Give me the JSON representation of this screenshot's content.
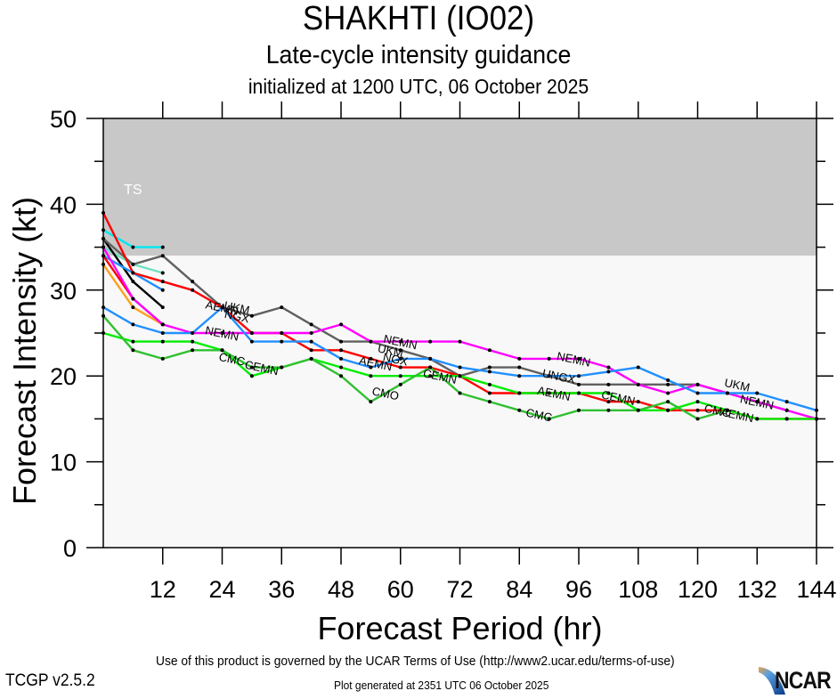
{
  "header": {
    "title": "SHAKHTI (IO02)",
    "subtitle": "Late-cycle intensity guidance",
    "init_line": "initialized at 1200 UTC, 06 October 2025"
  },
  "footer": {
    "terms": "Use of this product is governed by the UCAR Terms of Use (http://www2.ucar.edu/terms-of-use)",
    "version": "TCGP v2.5.2",
    "generated": "Plot generated at 2351 UTC   06 October 2025",
    "logo_text": "NCAR"
  },
  "chart_data": {
    "type": "line",
    "title": "SHAKHTI (IO02)",
    "subtitle": "Late-cycle intensity guidance",
    "xlabel": "Forecast Period (hr)",
    "ylabel": "Forecast Intensity (kt)",
    "xlim": [
      0,
      144
    ],
    "ylim": [
      0,
      50
    ],
    "xticks": [
      12,
      24,
      36,
      48,
      60,
      72,
      84,
      96,
      108,
      120,
      132,
      144
    ],
    "yticks": [
      0,
      10,
      20,
      30,
      40,
      50
    ],
    "grid": false,
    "legend": "none (inline labels)",
    "bands": [
      {
        "label": "TS",
        "from": 34,
        "to": 50,
        "color": "#c8c8c8"
      },
      {
        "label": "",
        "from": 0,
        "to": 34,
        "color": "#f8f8f8"
      }
    ],
    "series": [
      {
        "name": "short-cyan",
        "label": "",
        "color": "#00e8f0",
        "x": [
          0,
          6,
          12
        ],
        "values": [
          37,
          35,
          35
        ]
      },
      {
        "name": "short-aquamarine",
        "label": "",
        "color": "#70e0c0",
        "x": [
          0,
          6,
          12
        ],
        "values": [
          35,
          33,
          32
        ]
      },
      {
        "name": "short-black",
        "label": "",
        "color": "#000000",
        "x": [
          0,
          6,
          12
        ],
        "values": [
          36,
          31,
          28
        ]
      },
      {
        "name": "short-blue",
        "label": "",
        "color": "#2090ff",
        "x": [
          0,
          6,
          12
        ],
        "values": [
          34,
          32,
          30
        ]
      },
      {
        "name": "short-orange",
        "label": "",
        "color": "#ffa020",
        "x": [
          0,
          6,
          12
        ],
        "values": [
          33,
          28,
          26
        ]
      },
      {
        "name": "short-red",
        "label": "",
        "color": "#ff0000",
        "x": [
          0,
          6,
          12
        ],
        "values": [
          34,
          29,
          26
        ]
      },
      {
        "name": "UKM",
        "label": "UKM",
        "color": "#606060",
        "x": [
          0,
          6,
          12,
          18,
          24,
          30,
          36,
          42,
          48,
          54,
          60,
          66,
          72,
          78,
          84,
          90,
          96,
          102,
          108,
          114,
          120,
          126,
          132,
          138
        ],
        "values": [
          36,
          33,
          34,
          31,
          28,
          27,
          28,
          26,
          24,
          24,
          23,
          22,
          20,
          21,
          21,
          20,
          19,
          19,
          19,
          19,
          19,
          18,
          17,
          16
        ]
      },
      {
        "name": "AEMN",
        "label": "AEMN",
        "color": "#ff0000",
        "x": [
          0,
          6,
          12,
          18,
          24,
          30,
          36,
          42,
          48,
          54,
          60,
          66,
          72,
          78,
          84,
          90,
          96,
          102,
          108,
          114,
          120,
          126,
          132,
          138,
          144
        ],
        "values": [
          39,
          32,
          31,
          30,
          28,
          25,
          25,
          23,
          23,
          22,
          21,
          21,
          20,
          18,
          18,
          18,
          18,
          17,
          17,
          16,
          16,
          16,
          15,
          15,
          15
        ]
      },
      {
        "name": "NEMN",
        "label": "NEMN",
        "color": "#ff00ff",
        "x": [
          0,
          6,
          12,
          18,
          24,
          30,
          36,
          42,
          48,
          54,
          60,
          66,
          72,
          78,
          84,
          90,
          96,
          102,
          108,
          114,
          120,
          126,
          132,
          138,
          144
        ],
        "values": [
          35,
          29,
          26,
          25,
          25,
          25,
          25,
          25,
          26,
          24,
          24,
          24,
          24,
          23,
          22,
          22,
          22,
          21,
          19,
          18,
          19,
          18,
          17,
          16,
          15
        ]
      },
      {
        "name": "NGX",
        "label": "NGX",
        "color": "#2090ff",
        "x": [
          0,
          6,
          12,
          18,
          24,
          30,
          36,
          42,
          48,
          54,
          60,
          66,
          72,
          78,
          84,
          90,
          96,
          102,
          108,
          114,
          120,
          126,
          132,
          138,
          144
        ],
        "values": [
          28,
          26,
          25,
          25,
          28,
          24,
          24,
          24,
          22,
          21,
          22,
          22,
          21,
          20.5,
          20,
          20,
          20,
          20.5,
          21,
          19.5,
          18,
          18,
          18,
          17,
          16
        ]
      },
      {
        "name": "CEMN",
        "label": "CEMN",
        "color": "#00ee00",
        "x": [
          0,
          6,
          12,
          18,
          24,
          30,
          36,
          42,
          48,
          54,
          60,
          66,
          72,
          78,
          84,
          90,
          96,
          102,
          108,
          114,
          120,
          126,
          132,
          138,
          144
        ],
        "values": [
          25,
          24,
          24,
          24,
          23,
          20,
          21,
          22,
          21,
          20,
          20,
          20,
          20,
          19,
          18,
          18,
          18,
          18,
          16,
          16,
          17,
          16,
          15,
          15,
          15
        ]
      },
      {
        "name": "CMC",
        "label": "CMC",
        "color": "#30c030",
        "x": [
          0,
          6,
          12,
          18,
          24,
          30,
          36,
          42,
          48,
          54,
          60,
          66,
          72,
          78,
          84,
          90,
          96,
          102,
          108,
          114,
          120,
          126
        ],
        "values": [
          27,
          23,
          22,
          23,
          23,
          21,
          21,
          22,
          20,
          17,
          19,
          21,
          18,
          17,
          16,
          15,
          16,
          16,
          16,
          17,
          15,
          16
        ]
      }
    ],
    "annotations": [
      {
        "text": "NEMN",
        "x": 24,
        "y": 25,
        "series": "NEMN"
      },
      {
        "text": "AEMN",
        "x": 24,
        "y": 28,
        "series": "AEMN"
      },
      {
        "text": "UKM",
        "x": 27,
        "y": 28,
        "series": "UKM"
      },
      {
        "text": "NGX",
        "x": 27,
        "y": 27,
        "series": "NGX"
      },
      {
        "text": "CMC",
        "x": 26,
        "y": 22,
        "series": "CMC"
      },
      {
        "text": "CEMN",
        "x": 32,
        "y": 21,
        "series": "CEMN"
      },
      {
        "text": "NEMN",
        "x": 60,
        "y": 24,
        "series": "NEMN"
      },
      {
        "text": "UKM",
        "x": 58,
        "y": 23,
        "series": "UKM"
      },
      {
        "text": "AEMN",
        "x": 55,
        "y": 21.5,
        "series": "AEMN"
      },
      {
        "text": "NGX",
        "x": 59,
        "y": 22,
        "series": "NGX"
      },
      {
        "text": "CMO",
        "x": 57,
        "y": 18,
        "series": "CMC"
      },
      {
        "text": "CEMN",
        "x": 68,
        "y": 20,
        "series": "CEMN"
      },
      {
        "text": "CMC",
        "x": 88,
        "y": 15.5,
        "series": "CMC"
      },
      {
        "text": "NEMN",
        "x": 95,
        "y": 22,
        "series": "NEMN"
      },
      {
        "text": "UNGX",
        "x": 92,
        "y": 20,
        "series": "NGX"
      },
      {
        "text": "AEMN",
        "x": 91,
        "y": 18,
        "series": "AEMN"
      },
      {
        "text": "CEMN",
        "x": 104,
        "y": 17.5,
        "series": "CEMN"
      },
      {
        "text": "UKM",
        "x": 128,
        "y": 19,
        "series": "UKM"
      },
      {
        "text": "NEMN",
        "x": 132,
        "y": 17,
        "series": "NEMN"
      },
      {
        "text": "CMC",
        "x": 124,
        "y": 16,
        "series": "CMC"
      },
      {
        "text": "AEMN",
        "x": 128,
        "y": 15.5,
        "series": "AEMN"
      }
    ]
  }
}
